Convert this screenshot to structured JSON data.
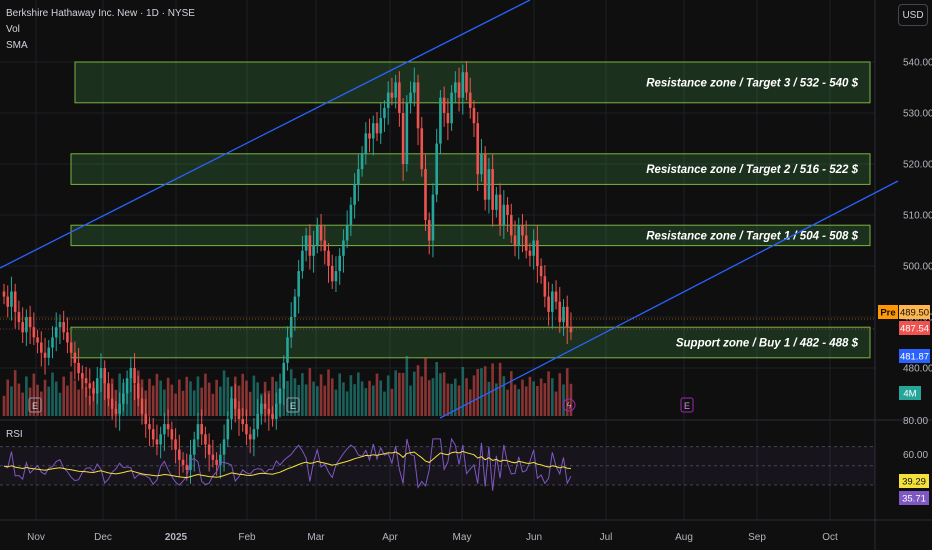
{
  "header": {
    "title": "Berkshire Hathaway Inc. New · 1D · NYSE",
    "vol_label": "Vol",
    "sma_label": "SMA"
  },
  "currency_button": "USD",
  "colors": {
    "bg": "#0f0f0f",
    "up": "#26a69a",
    "down": "#ef5350",
    "zone_fill": "rgba(76,175,80,0.22)",
    "zone_border": "#7cb342",
    "trendline": "#2962ff",
    "rsi_line": "#7e57c2",
    "rsi_sma": "#f5e13c",
    "grid": "#1c1f26",
    "axis_text": "#b2b5be"
  },
  "chart_data": {
    "type": "candlestick",
    "price_axis": {
      "ticks": [
        480,
        490,
        500,
        510,
        520,
        530,
        540
      ],
      "tick_labels": [
        "480.00",
        "490.00",
        "500.00",
        "510.00",
        "520.00",
        "530.00",
        "540.00"
      ],
      "range": [
        472,
        545
      ]
    },
    "time_axis": {
      "labels": [
        "Nov",
        "Dec",
        "2025",
        "Feb",
        "Mar",
        "Apr",
        "May",
        "Jun",
        "Jul",
        "Aug",
        "Sep",
        "Oct"
      ]
    },
    "zones": [
      {
        "label": "Resistance zone / Target 3 / 532 - 540 $",
        "low": 532,
        "high": 540
      },
      {
        "label": "Resistance zone / Target 2 / 516 - 522 $",
        "low": 516,
        "high": 522
      },
      {
        "label": "Resistance zone / Target 1 / 504 - 508 $",
        "low": 504,
        "high": 508
      },
      {
        "label": "Support zone / Buy 1 / 482 - 488 $",
        "low": 482,
        "high": 488
      }
    ],
    "price_tags": [
      {
        "prefix": "Pre",
        "value": "489.50",
        "color": "#ff9800"
      },
      {
        "prefix": "",
        "value": "487.54",
        "color": "#ef5350"
      },
      {
        "prefix": "",
        "value": "481.87",
        "color": "#2962ff"
      }
    ],
    "volume_tag": "4M",
    "rsi": {
      "label": "RSI",
      "ticks": [
        "80.00",
        "60.00",
        "40.00"
      ],
      "values": {
        "sma": "39.29",
        "rsi": "35.71"
      }
    },
    "event_markers": [
      "E",
      "E",
      "E"
    ],
    "closes": [
      494,
      492,
      495,
      491,
      489,
      487,
      490,
      488,
      486,
      485,
      483,
      482,
      484,
      486,
      488,
      489,
      487,
      485,
      483,
      481,
      479,
      478,
      477,
      476,
      475,
      478,
      480,
      477,
      474,
      472,
      471,
      473,
      475,
      478,
      480,
      477,
      474,
      471,
      469,
      468,
      466,
      465,
      467,
      469,
      468,
      466,
      464,
      462,
      461,
      460,
      463,
      466,
      469,
      467,
      465,
      463,
      462,
      461,
      463,
      466,
      470,
      474,
      472,
      470,
      469,
      467,
      466,
      468,
      471,
      473,
      472,
      471,
      470,
      473,
      476,
      481,
      486,
      490,
      494,
      499,
      503,
      506,
      502,
      504,
      508,
      505,
      503,
      500,
      497,
      499,
      502,
      505,
      508,
      512,
      516,
      519,
      522,
      526,
      525,
      528,
      526,
      529,
      531,
      534,
      533,
      536,
      530,
      520,
      532,
      534,
      536,
      527,
      519,
      509,
      505,
      514,
      524,
      533,
      530,
      528,
      534,
      536,
      533,
      538,
      534,
      531,
      528,
      518,
      522,
      513,
      519,
      511,
      514,
      508,
      512,
      510,
      506,
      504,
      508,
      506,
      503,
      502,
      505,
      500,
      498,
      494,
      491,
      495,
      493,
      489,
      492,
      488,
      487
    ]
  }
}
